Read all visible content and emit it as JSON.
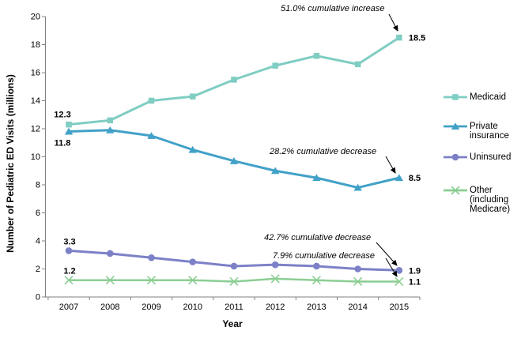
{
  "chart_data": {
    "type": "line",
    "x": [
      "2007",
      "2008",
      "2009",
      "2010",
      "2011",
      "2012",
      "2013",
      "2014",
      "2015"
    ],
    "xlabel": "Year",
    "ylabel": "Number of Pediatric ED Visits (millions)",
    "ylim": [
      0,
      20
    ],
    "ytick_step": 2,
    "grid": false,
    "legend_position": "right",
    "axis_color": "#808080",
    "text_color": "#000000",
    "series": [
      {
        "name": "Medicaid",
        "marker": "square",
        "color": "#7FCDC3",
        "values": [
          12.3,
          12.6,
          14.0,
          14.3,
          15.5,
          16.5,
          17.2,
          16.6,
          18.5
        ]
      },
      {
        "name": "Private insurance",
        "marker": "triangle",
        "color": "#41A1C8",
        "values": [
          11.8,
          11.9,
          11.5,
          10.5,
          9.7,
          9.0,
          8.5,
          7.8,
          8.5
        ]
      },
      {
        "name": "Uninsured",
        "marker": "circle",
        "color": "#7C81C7",
        "values": [
          3.3,
          3.1,
          2.8,
          2.5,
          2.2,
          2.3,
          2.2,
          2.0,
          1.9
        ]
      },
      {
        "name": "Other (including Medicare)",
        "marker": "x",
        "color": "#8BCE92",
        "values": [
          1.2,
          1.2,
          1.2,
          1.2,
          1.1,
          1.3,
          1.2,
          1.1,
          1.1
        ]
      }
    ],
    "point_labels": [
      {
        "series": 0,
        "index": 0,
        "text": "12.3",
        "placement": "above-left"
      },
      {
        "series": 1,
        "index": 0,
        "text": "11.8",
        "placement": "below-left"
      },
      {
        "series": 2,
        "index": 0,
        "text": "3.3",
        "placement": "above"
      },
      {
        "series": 3,
        "index": 0,
        "text": "1.2",
        "placement": "above"
      },
      {
        "series": 0,
        "index": 8,
        "text": "18.5",
        "placement": "right"
      },
      {
        "series": 1,
        "index": 8,
        "text": "8.5",
        "placement": "right"
      },
      {
        "series": 2,
        "index": 8,
        "text": "1.9",
        "placement": "right"
      },
      {
        "series": 3,
        "index": 8,
        "text": "1.1",
        "placement": "right"
      }
    ],
    "annotations": [
      {
        "text": "51.0% cumulative increase",
        "target_series": "Medicaid",
        "target_year": "2015"
      },
      {
        "text": "28.2% cumulative decrease",
        "target_series": "Private insurance",
        "target_year": "2015"
      },
      {
        "text": "42.7% cumulative decrease",
        "target_series": "Uninsured",
        "target_year": "2015"
      },
      {
        "text": "7.9% cumulative decrease",
        "target_series": "Other (including Medicare)",
        "target_year": "2015"
      }
    ]
  }
}
